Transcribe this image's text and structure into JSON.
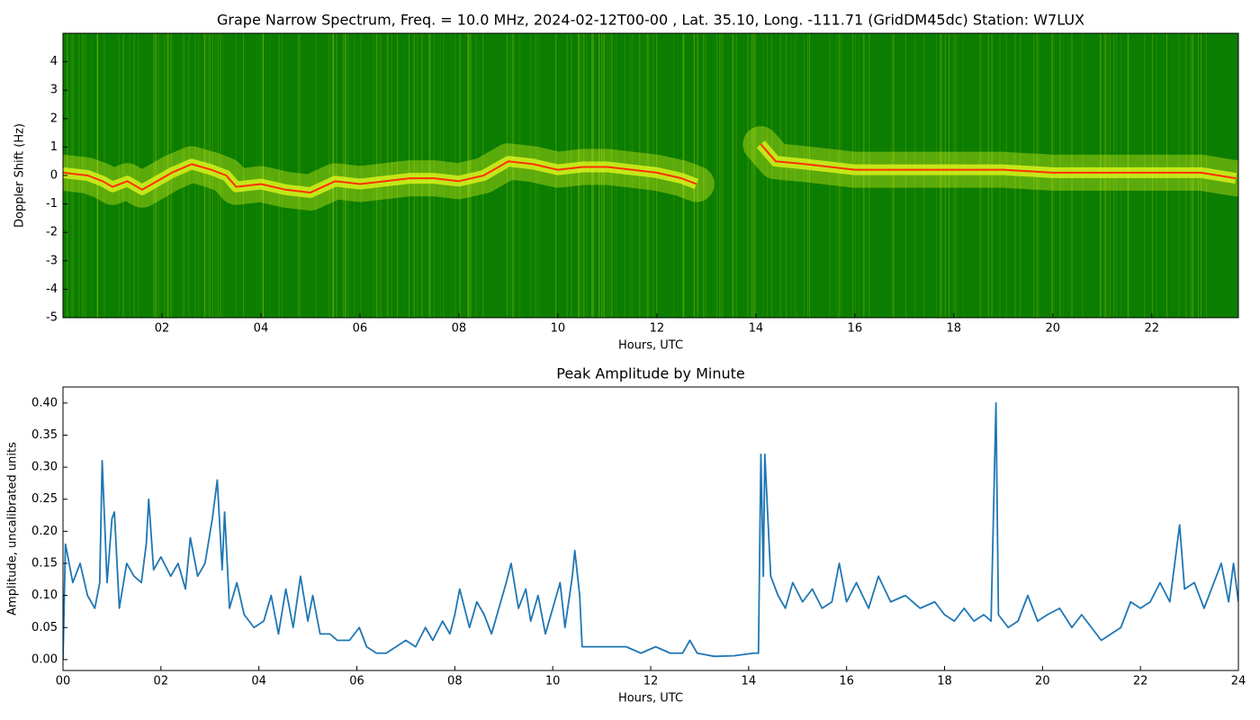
{
  "chart_data": [
    {
      "type": "spectrogram",
      "title": "Grape Narrow Spectrum, Freq. = 10.0 MHz, 2024-02-12T00-00 , Lat.  35.10, Long. -111.71 (GridDM45dc) Station: W7LUX",
      "xlabel": "Hours, UTC",
      "ylabel": "Doppler Shift (Hz)",
      "xlim": [
        0,
        23.75
      ],
      "ylim": [
        -5,
        5
      ],
      "xticks": [
        {
          "value": 2,
          "label": "02"
        },
        {
          "value": 4,
          "label": "04"
        },
        {
          "value": 6,
          "label": "06"
        },
        {
          "value": 8,
          "label": "08"
        },
        {
          "value": 10,
          "label": "10"
        },
        {
          "value": 12,
          "label": "12"
        },
        {
          "value": 14,
          "label": "14"
        },
        {
          "value": 16,
          "label": "16"
        },
        {
          "value": 18,
          "label": "18"
        },
        {
          "value": 20,
          "label": "20"
        },
        {
          "value": 22,
          "label": "22"
        }
      ],
      "yticks": [
        -5,
        -4,
        -3,
        -2,
        -1,
        0,
        1,
        2,
        3,
        4
      ],
      "background_color": "#0b7d00",
      "glow_color": "#f0ff20",
      "color": "#ff3000",
      "x": [
        0,
        0.5,
        0.8,
        1.0,
        1.3,
        1.6,
        1.8,
        2.2,
        2.6,
        3.0,
        3.3,
        3.5,
        4.0,
        4.5,
        5.0,
        5.5,
        6.0,
        6.5,
        7.0,
        7.5,
        8.0,
        8.5,
        9.0,
        9.5,
        10.0,
        10.5,
        11.0,
        11.5,
        12.0,
        12.5,
        12.8,
        13.4,
        14.1,
        14.4,
        15.0,
        16.0,
        17.0,
        18.0,
        19.0,
        20.0,
        21.0,
        22.0,
        23.0,
        23.7
      ],
      "values": [
        0.1,
        0.0,
        -0.2,
        -0.4,
        -0.2,
        -0.5,
        -0.3,
        0.1,
        0.4,
        0.2,
        0.0,
        -0.4,
        -0.3,
        -0.5,
        -0.6,
        -0.2,
        -0.3,
        -0.2,
        -0.1,
        -0.1,
        -0.2,
        0.0,
        0.5,
        0.4,
        0.2,
        0.3,
        0.3,
        0.2,
        0.1,
        -0.1,
        -0.3,
        null,
        1.1,
        0.5,
        0.4,
        0.2,
        0.2,
        0.2,
        0.2,
        0.1,
        0.1,
        0.1,
        0.1,
        -0.1
      ]
    },
    {
      "type": "line",
      "title": "Peak Amplitude by Minute",
      "xlabel": "Hours, UTC",
      "ylabel": "Amplitude, uncalibrated units",
      "xlim": [
        0,
        24
      ],
      "ylim": [
        -0.017,
        0.425
      ],
      "xticks": [
        {
          "value": 0,
          "label": "00"
        },
        {
          "value": 2,
          "label": "02"
        },
        {
          "value": 4,
          "label": "04"
        },
        {
          "value": 6,
          "label": "06"
        },
        {
          "value": 8,
          "label": "08"
        },
        {
          "value": 10,
          "label": "10"
        },
        {
          "value": 12,
          "label": "12"
        },
        {
          "value": 14,
          "label": "14"
        },
        {
          "value": 16,
          "label": "16"
        },
        {
          "value": 18,
          "label": "18"
        },
        {
          "value": 20,
          "label": "20"
        },
        {
          "value": 22,
          "label": "22"
        },
        {
          "value": 24,
          "label": "24"
        }
      ],
      "yticks": [
        {
          "value": 0,
          "label": "0.00"
        },
        {
          "value": 0.05,
          "label": "0.05"
        },
        {
          "value": 0.1,
          "label": "0.10"
        },
        {
          "value": 0.15,
          "label": "0.15"
        },
        {
          "value": 0.2,
          "label": "0.20"
        },
        {
          "value": 0.25,
          "label": "0.25"
        },
        {
          "value": 0.3,
          "label": "0.30"
        },
        {
          "value": 0.35,
          "label": "0.35"
        },
        {
          "value": 0.4,
          "label": "0.40"
        }
      ],
      "color": "#1f77b4",
      "x": [
        0,
        0.05,
        0.2,
        0.35,
        0.5,
        0.65,
        0.75,
        0.8,
        0.9,
        1.0,
        1.05,
        1.15,
        1.3,
        1.45,
        1.6,
        1.7,
        1.75,
        1.85,
        2.0,
        2.2,
        2.35,
        2.5,
        2.6,
        2.75,
        2.9,
        3.05,
        3.15,
        3.25,
        3.3,
        3.4,
        3.55,
        3.7,
        3.9,
        4.1,
        4.25,
        4.4,
        4.55,
        4.7,
        4.85,
        5.0,
        5.1,
        5.25,
        5.45,
        5.6,
        5.85,
        6.05,
        6.2,
        6.4,
        6.6,
        6.8,
        7.0,
        7.2,
        7.4,
        7.55,
        7.75,
        7.9,
        8.0,
        8.1,
        8.3,
        8.45,
        8.6,
        8.75,
        8.9,
        9.05,
        9.15,
        9.3,
        9.45,
        9.55,
        9.7,
        9.85,
        10.0,
        10.15,
        10.25,
        10.4,
        10.45,
        10.55,
        10.6,
        10.9,
        11.2,
        11.5,
        11.8,
        12.1,
        12.4,
        12.65,
        12.8,
        12.95,
        13.3,
        13.7,
        14.1,
        14.2,
        14.25,
        14.3,
        14.33,
        14.45,
        14.6,
        14.75,
        14.9,
        15.1,
        15.3,
        15.5,
        15.7,
        15.85,
        16.0,
        16.2,
        16.45,
        16.65,
        16.9,
        17.2,
        17.5,
        17.8,
        18.0,
        18.2,
        18.4,
        18.6,
        18.8,
        18.95,
        19.05,
        19.1,
        19.3,
        19.5,
        19.7,
        19.9,
        20.1,
        20.35,
        20.6,
        20.8,
        21.0,
        21.2,
        21.4,
        21.6,
        21.8,
        22.0,
        22.2,
        22.4,
        22.6,
        22.8,
        22.9,
        23.1,
        23.3,
        23.5,
        23.65,
        23.8,
        23.9,
        24.0
      ],
      "values": [
        0.0,
        0.18,
        0.12,
        0.15,
        0.1,
        0.08,
        0.12,
        0.31,
        0.12,
        0.22,
        0.23,
        0.08,
        0.15,
        0.13,
        0.12,
        0.18,
        0.25,
        0.14,
        0.16,
        0.13,
        0.15,
        0.11,
        0.19,
        0.13,
        0.15,
        0.22,
        0.28,
        0.14,
        0.23,
        0.08,
        0.12,
        0.07,
        0.05,
        0.06,
        0.1,
        0.04,
        0.11,
        0.05,
        0.13,
        0.06,
        0.1,
        0.04,
        0.04,
        0.03,
        0.03,
        0.05,
        0.02,
        0.01,
        0.01,
        0.02,
        0.03,
        0.02,
        0.05,
        0.03,
        0.06,
        0.04,
        0.07,
        0.11,
        0.05,
        0.09,
        0.07,
        0.04,
        0.08,
        0.12,
        0.15,
        0.08,
        0.11,
        0.06,
        0.1,
        0.04,
        0.08,
        0.12,
        0.05,
        0.13,
        0.17,
        0.1,
        0.02,
        0.02,
        0.02,
        0.02,
        0.01,
        0.02,
        0.01,
        0.01,
        0.03,
        0.01,
        0.005,
        0.006,
        0.01,
        0.01,
        0.32,
        0.13,
        0.32,
        0.13,
        0.1,
        0.08,
        0.12,
        0.09,
        0.11,
        0.08,
        0.09,
        0.15,
        0.09,
        0.12,
        0.08,
        0.13,
        0.09,
        0.1,
        0.08,
        0.09,
        0.07,
        0.06,
        0.08,
        0.06,
        0.07,
        0.06,
        0.4,
        0.07,
        0.05,
        0.06,
        0.1,
        0.06,
        0.07,
        0.08,
        0.05,
        0.07,
        0.05,
        0.03,
        0.04,
        0.05,
        0.09,
        0.08,
        0.09,
        0.12,
        0.09,
        0.21,
        0.11,
        0.12,
        0.08,
        0.12,
        0.15,
        0.09,
        0.15,
        0.09
      ]
    }
  ]
}
